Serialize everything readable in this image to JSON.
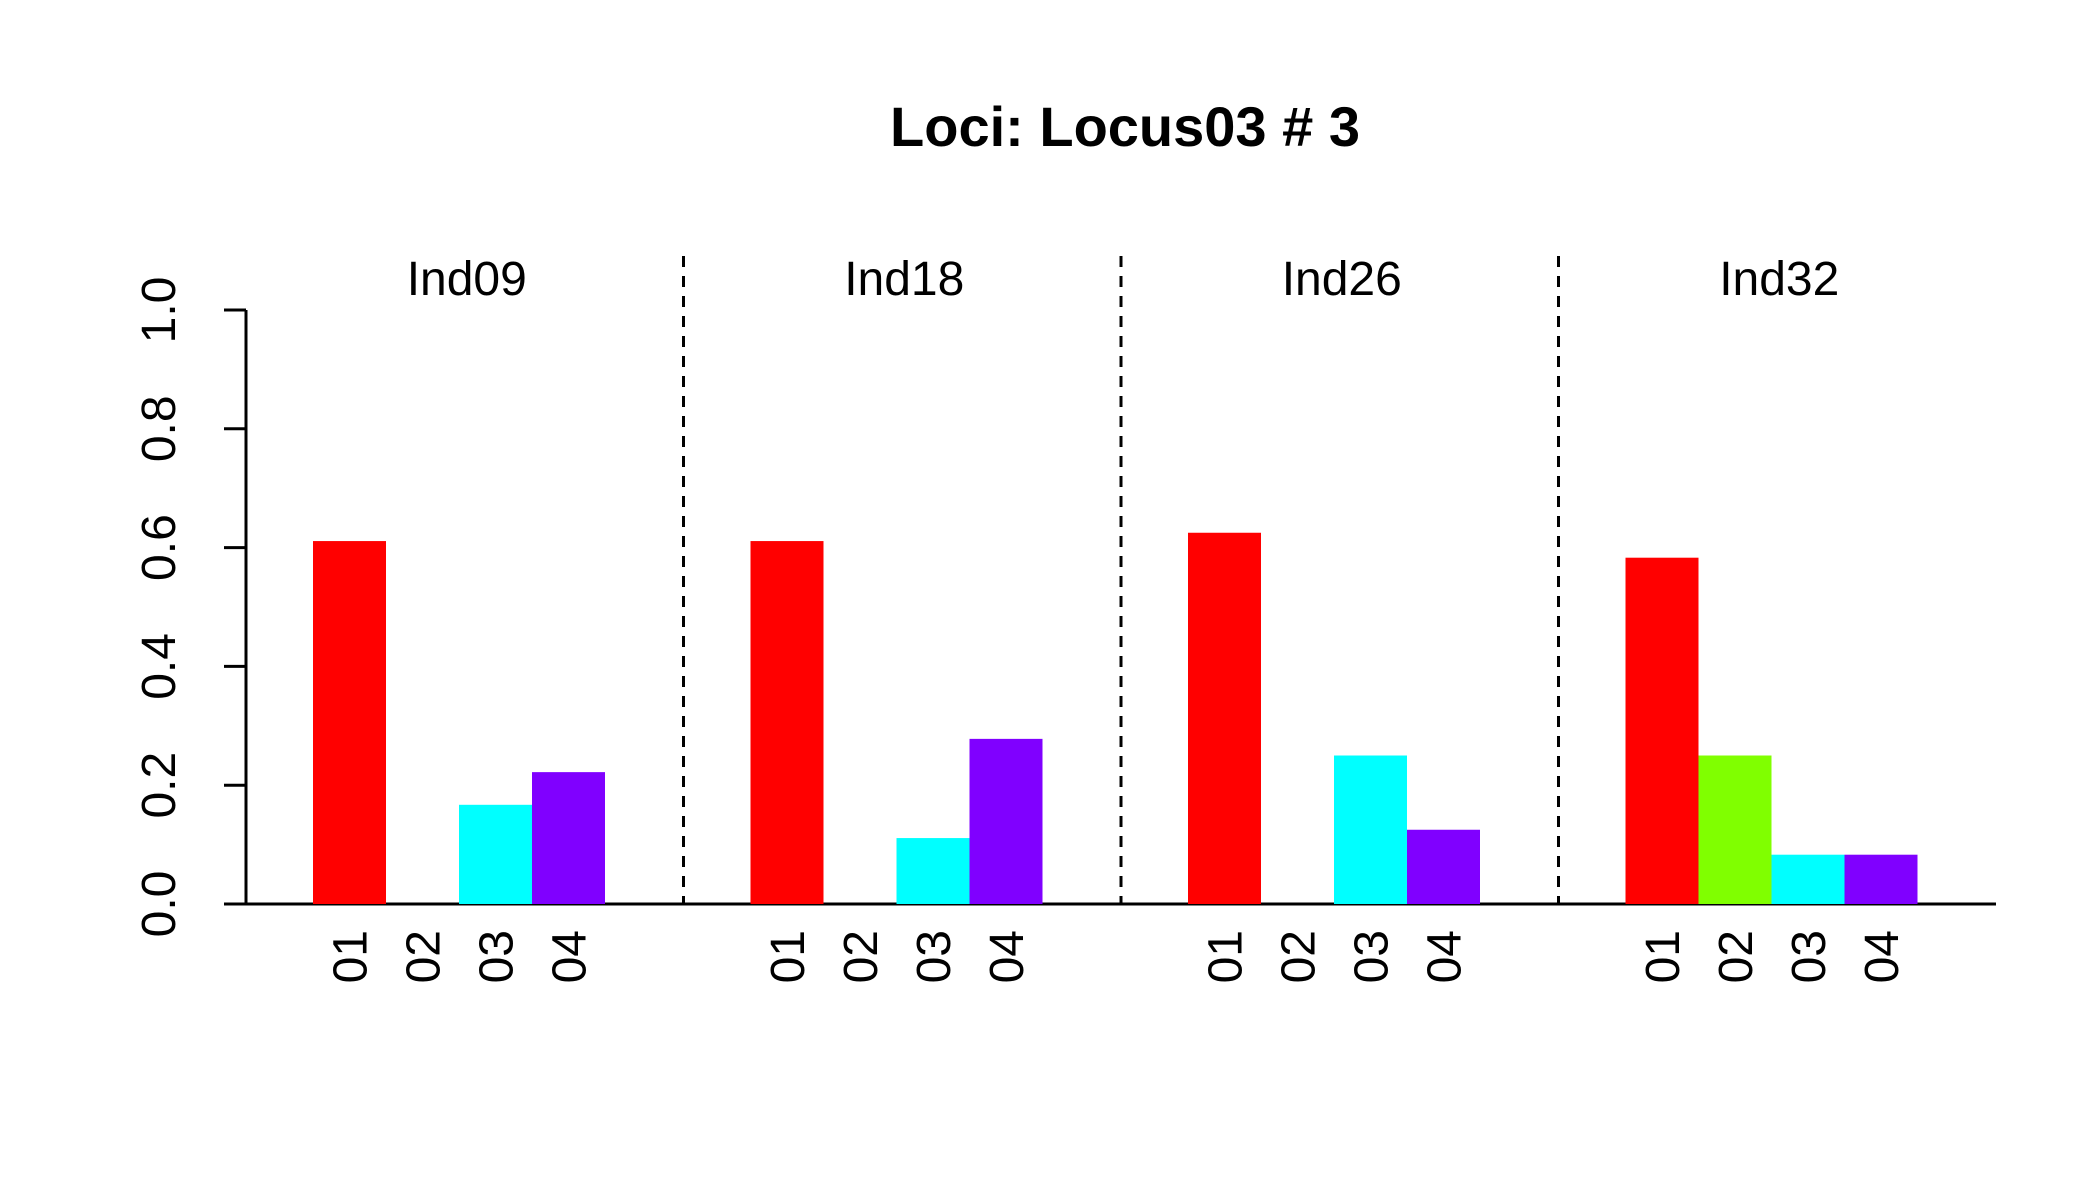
{
  "chart_data": {
    "type": "bar",
    "title": "Loci: Locus03 # 3",
    "xlabel": "",
    "ylabel": "",
    "ylim": [
      0,
      1
    ],
    "y_ticks": [
      "0.0",
      "0.2",
      "0.4",
      "0.6",
      "0.8",
      "1.0"
    ],
    "categories": [
      "01",
      "02",
      "03",
      "04"
    ],
    "category_colors": [
      "#FF0000",
      "#80FF00",
      "#00FFFF",
      "#8000FF"
    ],
    "panels": [
      {
        "name": "Ind09",
        "values": [
          0.611,
          0.0,
          0.167,
          0.222
        ]
      },
      {
        "name": "Ind18",
        "values": [
          0.611,
          0.0,
          0.111,
          0.278
        ]
      },
      {
        "name": "Ind26",
        "values": [
          0.625,
          0.0,
          0.25,
          0.125
        ]
      },
      {
        "name": "Ind32",
        "values": [
          0.583,
          0.25,
          0.083,
          0.083
        ]
      }
    ],
    "panel_separator": "dashed",
    "grid": false,
    "legend": "none"
  }
}
